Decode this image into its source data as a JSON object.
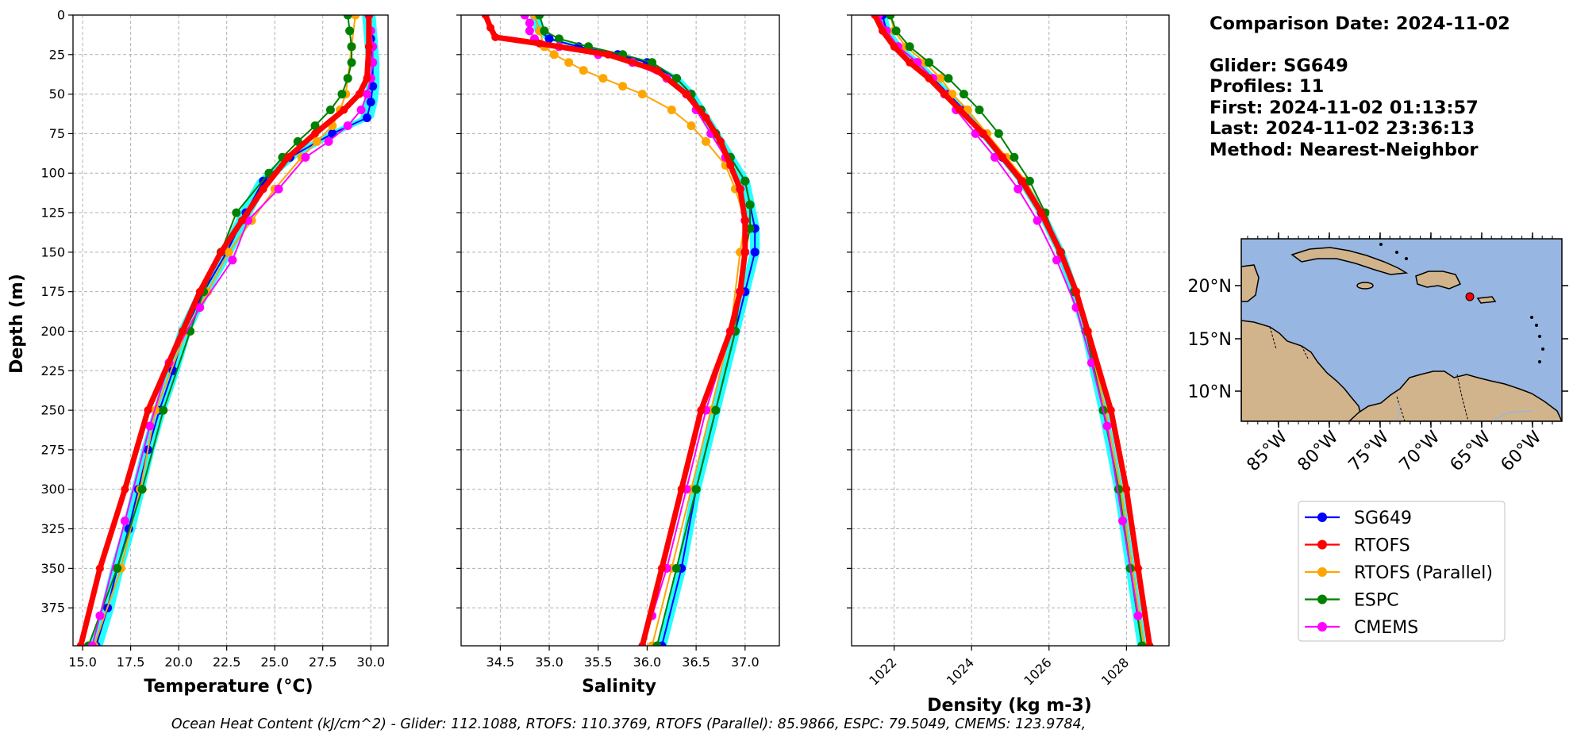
{
  "chart_data": [
    {
      "type": "line",
      "xlabel": "Temperature (°C)",
      "ylabel": "Depth (m)",
      "xlim": [
        14.5,
        30.9
      ],
      "ylim": [
        399,
        0
      ],
      "xticks": [
        "15.0",
        "17.5",
        "20.0",
        "22.5",
        "25.0",
        "27.5",
        "30.0"
      ],
      "yticks": [
        "0",
        "25",
        "50",
        "75",
        "100",
        "125",
        "150",
        "175",
        "200",
        "225",
        "250",
        "275",
        "300",
        "325",
        "350",
        "375"
      ],
      "grid": true,
      "series": [
        {
          "name": "SG649",
          "depth": [
            0,
            15,
            30,
            45,
            55,
            65,
            75,
            90,
            105,
            125,
            150,
            175,
            200,
            225,
            250,
            275,
            300,
            325,
            350,
            375,
            399
          ],
          "values": [
            29.9,
            30.0,
            30.1,
            30.1,
            30.0,
            29.8,
            28.0,
            25.8,
            24.4,
            23.5,
            22.5,
            21.3,
            20.3,
            19.7,
            19.0,
            18.4,
            17.9,
            17.4,
            16.8,
            16.3,
            15.7
          ]
        },
        {
          "name": "RTOFS",
          "depth": [
            0,
            20,
            40,
            50,
            60,
            75,
            90,
            110,
            130,
            150,
            175,
            200,
            250,
            300,
            350,
            399
          ],
          "values": [
            29.9,
            29.9,
            29.8,
            29.4,
            28.6,
            27.1,
            25.7,
            24.4,
            23.3,
            22.2,
            21.1,
            20.2,
            18.4,
            17.2,
            15.9,
            14.9
          ]
        },
        {
          "name": "RTOFS (Parallel)",
          "depth": [
            0,
            20,
            40,
            50,
            60,
            70,
            80,
            90,
            110,
            130,
            150,
            175,
            200,
            250,
            300,
            350,
            399
          ],
          "values": [
            29.2,
            29.0,
            28.8,
            28.7,
            28.4,
            28.0,
            27.2,
            26.4,
            25.0,
            23.8,
            22.6,
            21.5,
            20.4,
            18.8,
            18.0,
            17.0,
            15.6
          ]
        },
        {
          "name": "ESPC",
          "depth": [
            0,
            10,
            20,
            30,
            40,
            50,
            60,
            70,
            80,
            90,
            100,
            125,
            150,
            175,
            200,
            250,
            300,
            350,
            399
          ],
          "values": [
            28.8,
            28.9,
            29.0,
            29.0,
            28.8,
            28.5,
            27.9,
            27.1,
            26.2,
            25.4,
            24.7,
            23.0,
            22.2,
            21.3,
            20.6,
            19.2,
            18.1,
            16.8,
            15.3
          ]
        },
        {
          "name": "CMEMS",
          "depth": [
            0,
            10,
            20,
            30,
            40,
            50,
            60,
            70,
            80,
            90,
            110,
            130,
            155,
            185,
            220,
            260,
            320,
            380,
            399
          ],
          "values": [
            29.9,
            30.0,
            30.1,
            30.1,
            30.0,
            29.8,
            29.5,
            28.8,
            27.8,
            26.6,
            25.2,
            23.6,
            22.8,
            21.1,
            19.5,
            18.5,
            17.2,
            15.9,
            15.5
          ]
        }
      ]
    },
    {
      "type": "line",
      "xlabel": "Salinity",
      "xlim": [
        34.1,
        37.35
      ],
      "ylim": [
        399,
        0
      ],
      "xticks": [
        "34.5",
        "35.0",
        "35.5",
        "36.0",
        "36.5",
        "37.0"
      ],
      "grid": true,
      "series": [
        {
          "name": "SG649",
          "depth": [
            0,
            10,
            15,
            20,
            25,
            30,
            40,
            50,
            60,
            75,
            90,
            105,
            120,
            135,
            150,
            175,
            200,
            250,
            300,
            350,
            399
          ],
          "values": [
            34.85,
            34.9,
            35.0,
            35.3,
            35.7,
            36.0,
            36.3,
            36.45,
            36.55,
            36.7,
            36.85,
            37.0,
            37.05,
            37.1,
            37.1,
            37.0,
            36.9,
            36.7,
            36.5,
            36.35,
            36.15
          ]
        },
        {
          "name": "RTOFS",
          "depth": [
            0,
            8,
            14,
            18,
            25,
            35,
            50,
            65,
            80,
            95,
            110,
            130,
            150,
            175,
            200,
            250,
            300,
            350,
            399
          ],
          "values": [
            34.35,
            34.4,
            34.45,
            34.9,
            35.6,
            36.1,
            36.4,
            36.6,
            36.75,
            36.85,
            36.95,
            37.0,
            37.0,
            36.95,
            36.85,
            36.55,
            36.35,
            36.15,
            35.95
          ]
        },
        {
          "name": "RTOFS (Parallel)",
          "depth": [
            0,
            10,
            20,
            25,
            30,
            35,
            40,
            45,
            50,
            60,
            70,
            80,
            95,
            110,
            130,
            150,
            200,
            250,
            300,
            350,
            399
          ],
          "values": [
            34.85,
            34.9,
            34.95,
            35.05,
            35.2,
            35.35,
            35.55,
            35.75,
            35.95,
            36.25,
            36.45,
            36.6,
            36.8,
            36.9,
            37.0,
            36.95,
            36.85,
            36.65,
            36.45,
            36.25,
            36.05
          ]
        },
        {
          "name": "ESPC",
          "depth": [
            0,
            10,
            15,
            20,
            25,
            30,
            40,
            50,
            60,
            75,
            90,
            105,
            120,
            135,
            150,
            175,
            200,
            250,
            300,
            350,
            399
          ],
          "values": [
            34.9,
            34.95,
            35.1,
            35.4,
            35.75,
            36.05,
            36.3,
            36.45,
            36.55,
            36.7,
            36.85,
            37.0,
            37.05,
            37.05,
            37.0,
            36.95,
            36.9,
            36.7,
            36.5,
            36.3,
            36.1
          ]
        },
        {
          "name": "CMEMS",
          "depth": [
            0,
            5,
            10,
            15,
            20,
            25,
            30,
            40,
            50,
            60,
            75,
            90,
            110,
            130,
            150,
            175,
            200,
            250,
            300,
            350,
            380
          ],
          "values": [
            34.75,
            34.8,
            34.8,
            34.85,
            35.1,
            35.5,
            35.85,
            36.2,
            36.4,
            36.5,
            36.65,
            36.8,
            36.95,
            37.0,
            37.0,
            36.95,
            36.85,
            36.6,
            36.4,
            36.2,
            36.05
          ]
        }
      ]
    },
    {
      "type": "line",
      "xlabel": "Density (kg m-3)",
      "xlim": [
        1020.9,
        1029.1
      ],
      "ylim": [
        399,
        0
      ],
      "xticks": [
        "1022",
        "1024",
        "1026",
        "1028"
      ],
      "grid": true,
      "series": [
        {
          "name": "SG649",
          "depth": [
            0,
            10,
            20,
            30,
            40,
            50,
            60,
            75,
            90,
            105,
            125,
            150,
            175,
            200,
            250,
            300,
            350,
            399
          ],
          "values": [
            1021.7,
            1021.8,
            1022.1,
            1022.6,
            1023.0,
            1023.4,
            1023.8,
            1024.3,
            1024.8,
            1025.3,
            1025.8,
            1026.3,
            1026.65,
            1026.95,
            1027.4,
            1027.8,
            1028.1,
            1028.4
          ]
        },
        {
          "name": "RTOFS",
          "depth": [
            0,
            10,
            20,
            30,
            40,
            50,
            60,
            75,
            90,
            105,
            125,
            150,
            175,
            200,
            250,
            300,
            350,
            399
          ],
          "values": [
            1021.5,
            1021.7,
            1022.0,
            1022.4,
            1022.9,
            1023.3,
            1023.7,
            1024.3,
            1024.8,
            1025.3,
            1025.8,
            1026.3,
            1026.7,
            1027.0,
            1027.6,
            1028.0,
            1028.3,
            1028.6
          ]
        },
        {
          "name": "RTOFS (Parallel)",
          "depth": [
            0,
            10,
            20,
            30,
            40,
            50,
            60,
            75,
            90,
            105,
            125,
            150,
            175,
            200,
            250,
            300,
            350,
            399
          ],
          "values": [
            1021.9,
            1022.0,
            1022.3,
            1022.8,
            1023.2,
            1023.5,
            1023.9,
            1024.4,
            1024.9,
            1025.4,
            1025.85,
            1026.3,
            1026.7,
            1027.0,
            1027.45,
            1027.85,
            1028.15,
            1028.45
          ]
        },
        {
          "name": "ESPC",
          "depth": [
            0,
            10,
            20,
            30,
            40,
            50,
            60,
            75,
            90,
            105,
            125,
            150,
            175,
            200,
            250,
            300,
            350,
            399
          ],
          "values": [
            1021.9,
            1022.05,
            1022.4,
            1022.9,
            1023.4,
            1023.8,
            1024.2,
            1024.7,
            1025.1,
            1025.5,
            1025.9,
            1026.3,
            1026.65,
            1026.95,
            1027.4,
            1027.8,
            1028.1,
            1028.4
          ]
        },
        {
          "name": "CMEMS",
          "depth": [
            0,
            10,
            20,
            30,
            40,
            50,
            60,
            75,
            90,
            110,
            130,
            155,
            185,
            220,
            260,
            320,
            380
          ],
          "values": [
            1021.6,
            1021.8,
            1022.1,
            1022.6,
            1023.0,
            1023.3,
            1023.6,
            1024.1,
            1024.6,
            1025.2,
            1025.7,
            1026.2,
            1026.7,
            1027.1,
            1027.5,
            1027.9,
            1028.3
          ]
        }
      ]
    }
  ],
  "series_colors": {
    "SG649": "#0000ff",
    "RTOFS": "#ff0000",
    "RTOFS (Parallel)": "#ffa500",
    "ESPC": "#008000",
    "CMEMS": "#ff00ff",
    "glider_profiles": "#00ffff"
  },
  "info": {
    "comparison_date": "Comparison Date: 2024-11-02",
    "glider": "Glider: SG649",
    "profiles": "Profiles: 11",
    "first": "First: 2024-11-02 01:13:57",
    "last": "Last: 2024-11-02 23:36:13",
    "method": "Method: Nearest-Neighbor"
  },
  "map": {
    "lat_ticks": [
      "20°N",
      "15°N",
      "10°N"
    ],
    "lon_ticks": [
      "85°W",
      "80°W",
      "75°W",
      "70°W",
      "65°W",
      "60°W"
    ],
    "ocean_color": "#97b6e1",
    "land_color": "#d2b48c",
    "glider_location": {
      "lon": -66.8,
      "lat": 18.7
    }
  },
  "legend": {
    "placement": "lower-right",
    "entries": [
      "SG649",
      "RTOFS",
      "RTOFS (Parallel)",
      "ESPC",
      "CMEMS"
    ]
  },
  "footer": {
    "ohc": "Ocean Heat Content (kJ/cm^2) - Glider: 112.1088,  RTOFS: 110.3769,  RTOFS (Parallel): 85.9866,  ESPC: 79.5049,  CMEMS: 123.9784,"
  }
}
